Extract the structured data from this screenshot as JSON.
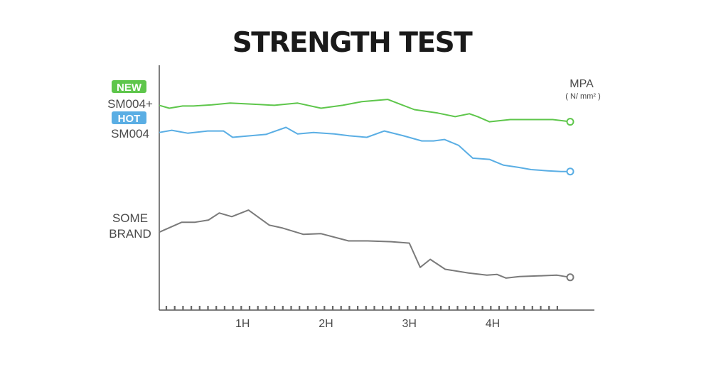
{
  "chart_data": {
    "type": "line",
    "title": "STRENGTH TEST",
    "unit": "MPA",
    "unit_sub": "( N/ mm² )",
    "x_ticks": [
      {
        "x": 1,
        "label": "1H"
      },
      {
        "x": 2,
        "label": "2H"
      },
      {
        "x": 3,
        "label": "3H"
      },
      {
        "x": 4,
        "label": "4H"
      }
    ],
    "xlim": [
      0,
      4.87
    ],
    "ylim": [
      0,
      100
    ],
    "series": [
      {
        "name": "SM004+",
        "badge": "NEW",
        "color": "#5ec64b",
        "x": [
          0,
          0.12,
          0.28,
          0.41,
          0.63,
          0.85,
          1.2,
          1.38,
          1.66,
          1.94,
          2.2,
          2.43,
          2.74,
          2.9,
          3.06,
          3.34,
          3.55,
          3.72,
          3.82,
          3.96,
          4.21,
          4.35,
          4.49,
          4.72,
          4.87,
          4.93
        ],
        "y": [
          84.4,
          83.2,
          84.1,
          84.1,
          84.6,
          85.3,
          84.7,
          84.4,
          85.3,
          83.2,
          84.4,
          85.9,
          86.8,
          84.7,
          82.6,
          81.2,
          79.7,
          80.9,
          79.7,
          77.6,
          78.5,
          78.5,
          78.5,
          78.5,
          77.9,
          77.6
        ],
        "label_lines": [
          "SM004+"
        ]
      },
      {
        "name": "SM004",
        "badge": "HOT",
        "color": "#5aaee4",
        "x": [
          0,
          0.15,
          0.34,
          0.58,
          0.77,
          0.88,
          1.28,
          1.52,
          1.66,
          1.85,
          2.1,
          2.28,
          2.49,
          2.7,
          2.93,
          3.15,
          3.29,
          3.42,
          3.59,
          3.76,
          3.96,
          4.13,
          4.31,
          4.46,
          4.66,
          4.82,
          4.93
        ],
        "y": [
          73.2,
          74.1,
          72.9,
          73.8,
          73.8,
          71.2,
          72.4,
          75.3,
          72.6,
          73.2,
          72.6,
          71.8,
          71.2,
          73.8,
          71.8,
          69.7,
          69.7,
          70.3,
          67.9,
          62.6,
          62.1,
          59.7,
          58.8,
          57.9,
          57.4,
          57.1,
          57.1
        ],
        "label_lines": [
          "SM004"
        ]
      },
      {
        "name": "SOME BRAND",
        "color": "#7a7a7a",
        "x": [
          0,
          0.27,
          0.43,
          0.59,
          0.72,
          0.87,
          1.07,
          1.32,
          1.48,
          1.73,
          1.94,
          2.27,
          2.5,
          2.78,
          3.0,
          3.13,
          3.25,
          3.43,
          3.71,
          3.93,
          4.05,
          4.16,
          4.32,
          4.55,
          4.77,
          4.93
        ],
        "y": [
          32.1,
          36.2,
          36.2,
          37.1,
          40.0,
          38.5,
          41.2,
          35.0,
          33.8,
          31.2,
          31.5,
          28.5,
          28.5,
          28.2,
          27.6,
          17.6,
          20.9,
          16.8,
          15.3,
          14.4,
          14.7,
          13.2,
          13.8,
          14.1,
          14.4,
          13.5
        ],
        "label_lines": [
          "SOME",
          "BRAND"
        ]
      }
    ]
  }
}
